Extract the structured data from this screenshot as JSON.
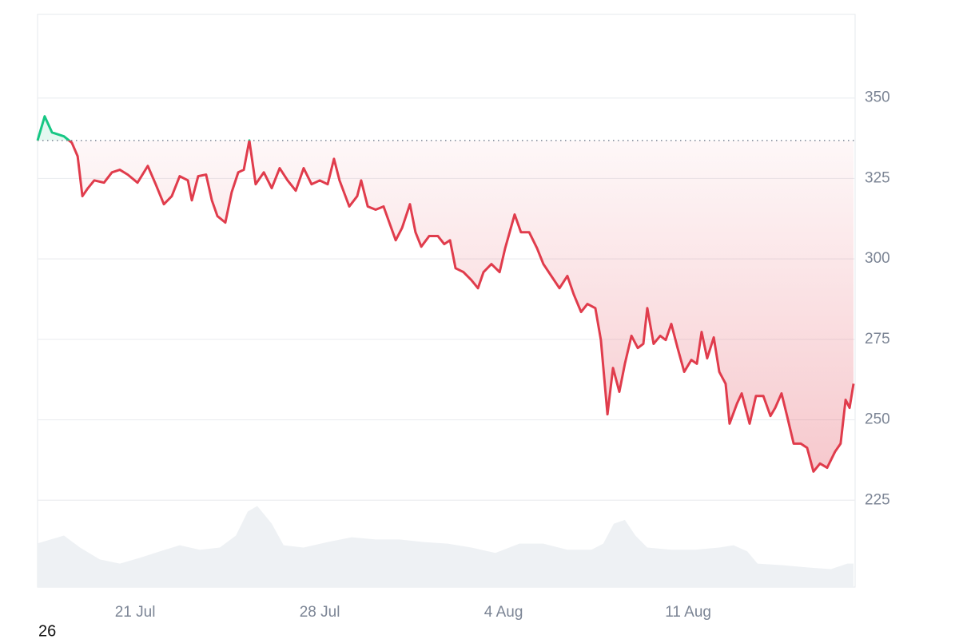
{
  "chart_data": {
    "type": "line",
    "annotation": "26",
    "x": [
      0,
      0.27,
      0.55,
      1.0,
      1.3,
      1.52,
      1.7,
      1.91,
      2.15,
      2.52,
      2.82,
      3.12,
      3.42,
      3.79,
      4.18,
      4.48,
      4.79,
      5.09,
      5.39,
      5.7,
      5.85,
      6.09,
      6.39,
      6.61,
      6.82,
      7.12,
      7.36,
      7.61,
      7.82,
      8.03,
      8.27,
      8.58,
      8.88,
      9.18,
      9.48,
      9.79,
      10.09,
      10.39,
      10.7,
      11.0,
      11.24,
      11.45,
      11.82,
      12.12,
      12.27,
      12.52,
      12.82,
      13.12,
      13.36,
      13.58,
      13.82,
      14.12,
      14.33,
      14.55,
      14.85,
      15.18,
      15.42,
      15.64,
      15.85,
      16.15,
      16.45,
      16.7,
      16.91,
      17.21,
      17.52,
      17.73,
      18.09,
      18.33,
      18.64,
      18.94,
      19.18,
      19.48,
      19.79,
      20.09,
      20.33,
      20.61,
      20.85,
      21.15,
      21.36,
      21.61,
      21.82,
      22.06,
      22.27,
      22.52,
      22.76,
      22.97,
      23.12,
      23.36,
      23.61,
      23.82,
      24.03,
      24.27,
      24.52,
      24.79,
      25.0,
      25.18,
      25.39,
      25.64,
      25.85,
      26.09,
      26.24,
      26.52,
      26.7,
      27.0,
      27.24,
      27.52,
      27.79,
      27.97,
      28.21,
      28.42,
      28.67,
      28.94,
      29.18,
      29.42,
      29.67,
      29.94,
      30.24,
      30.45,
      30.64,
      30.79,
      30.94
    ],
    "series": [
      {
        "color": "#e03c4c",
        "up_color": "#16c784",
        "values": [
          336.8,
          344.3,
          339.3,
          338.1,
          336.1,
          331.9,
          319.5,
          322.0,
          324.4,
          323.7,
          326.9,
          327.7,
          326.2,
          323.7,
          328.9,
          323.2,
          317.0,
          319.5,
          325.7,
          324.4,
          318.2,
          325.7,
          326.2,
          318.2,
          313.3,
          311.3,
          320.7,
          326.9,
          327.7,
          336.8,
          323.2,
          326.9,
          322.0,
          328.2,
          324.4,
          321.2,
          328.2,
          323.2,
          324.4,
          323.2,
          331.1,
          324.4,
          316.3,
          319.5,
          324.4,
          316.3,
          315.3,
          316.3,
          310.8,
          305.8,
          309.6,
          317.0,
          308.3,
          303.8,
          307.1,
          307.1,
          304.6,
          305.8,
          297.1,
          295.9,
          293.4,
          290.9,
          295.9,
          298.4,
          295.9,
          303.3,
          313.8,
          308.3,
          308.3,
          303.3,
          298.4,
          294.7,
          290.9,
          294.7,
          289.0,
          283.5,
          286.0,
          284.7,
          274.8,
          251.7,
          266.1,
          258.7,
          267.4,
          276.1,
          272.3,
          273.6,
          284.7,
          273.6,
          276.1,
          274.8,
          279.8,
          272.3,
          264.9,
          268.6,
          267.4,
          277.3,
          269.1,
          275.6,
          264.9,
          261.2,
          248.8,
          255.0,
          258.2,
          248.8,
          257.4,
          257.4,
          251.2,
          253.7,
          258.2,
          251.2,
          242.6,
          242.6,
          241.3,
          233.9,
          236.4,
          235.1,
          240.1,
          242.6,
          256.2,
          253.7,
          261.2
        ]
      }
    ],
    "baseline": 336.8,
    "volume": {
      "color": "#eef1f4",
      "x": [
        0,
        1.0,
        1.61,
        2.36,
        3.12,
        3.88,
        4.64,
        5.39,
        6.15,
        6.91,
        7.52,
        7.97,
        8.33,
        8.88,
        9.33,
        10.09,
        11.0,
        11.91,
        12.82,
        13.73,
        14.64,
        15.55,
        16.45,
        17.36,
        18.27,
        19.18,
        20.09,
        21.0,
        21.45,
        21.85,
        22.27,
        22.67,
        23.12,
        24.03,
        24.94,
        25.85,
        26.39,
        26.91,
        27.3,
        28.27,
        29.18,
        30.09,
        30.7,
        30.94
      ],
      "values": [
        211.6,
        214.0,
        210.3,
        206.6,
        205.3,
        207.1,
        209.1,
        211.0,
        209.6,
        210.3,
        214.0,
        221.5,
        223.2,
        217.7,
        211.0,
        210.3,
        212.0,
        213.5,
        212.8,
        212.8,
        212.0,
        211.5,
        210.3,
        208.6,
        211.5,
        211.5,
        209.6,
        209.6,
        211.5,
        217.7,
        218.9,
        214.0,
        210.3,
        209.6,
        209.6,
        210.3,
        211.0,
        209.1,
        205.3,
        204.8,
        204.1,
        203.6,
        205.3,
        205.3
      ]
    },
    "xlim": [
      0,
      31
    ],
    "xticks": [
      {
        "value": 3.7,
        "label": "21 Jul"
      },
      {
        "value": 10.7,
        "label": "28 Jul"
      },
      {
        "value": 17.67,
        "label": "4 Aug"
      },
      {
        "value": 24.67,
        "label": "11 Aug"
      }
    ],
    "ylim": [
      198,
      376
    ],
    "yticks": [
      225,
      250,
      275,
      300,
      325,
      350
    ],
    "grid": true
  }
}
